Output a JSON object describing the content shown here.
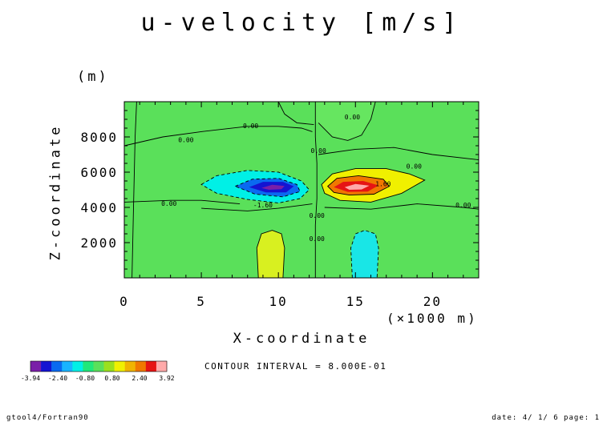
{
  "chart_data": {
    "type": "heatmap",
    "title": "u-velocity [m/s]",
    "xlabel": "X-coordinate",
    "x_unit": "(×1000 m)",
    "ylabel": "Z-coordinate",
    "y_unit": "(m)",
    "xlim": [
      0,
      23
    ],
    "ylim": [
      0,
      10000
    ],
    "x_ticks": [
      0,
      5,
      10,
      15,
      20
    ],
    "y_ticks": [
      2000,
      4000,
      6000,
      8000
    ],
    "contour_interval": "CONTOUR INTERVAL = 8.000E-01",
    "contour_labels": [
      {
        "text": "0.00",
        "x": 8.2,
        "y": 8500
      },
      {
        "text": "0.00",
        "x": 4.0,
        "y": 7700
      },
      {
        "text": "0.00",
        "x": 2.9,
        "y": 4100
      },
      {
        "text": "0.00",
        "x": 12.6,
        "y": 7100
      },
      {
        "text": "0.00",
        "x": 14.8,
        "y": 9000
      },
      {
        "text": "0.00",
        "x": 18.8,
        "y": 6200
      },
      {
        "text": "0.00",
        "x": 22.0,
        "y": 4000
      },
      {
        "text": "0.00",
        "x": 12.5,
        "y": 3400
      },
      {
        "text": "0.00",
        "x": 12.5,
        "y": 2100
      },
      {
        "text": "-1.60",
        "x": 9.0,
        "y": 4000
      },
      {
        "text": "1.60",
        "x": 16.8,
        "y": 5200
      }
    ],
    "colorbar": {
      "labels": [
        "-3.94",
        "-2.40",
        "-0.80",
        "0.80",
        "2.40",
        "3.92"
      ],
      "colors": [
        "#7a1fa8",
        "#1414d2",
        "#0a6af0",
        "#19b4ff",
        "#00f0e6",
        "#20e87a",
        "#5ae05a",
        "#9be01e",
        "#f0f000",
        "#f0b400",
        "#f07800",
        "#e61414",
        "#ffaaaa"
      ]
    },
    "palette": {
      "background": "#5ae05a",
      "zero_line": "#000000"
    }
  },
  "footer": {
    "left": "gtool4/Fortran90",
    "right": "date: 4/ 1/ 6 page: 1"
  }
}
